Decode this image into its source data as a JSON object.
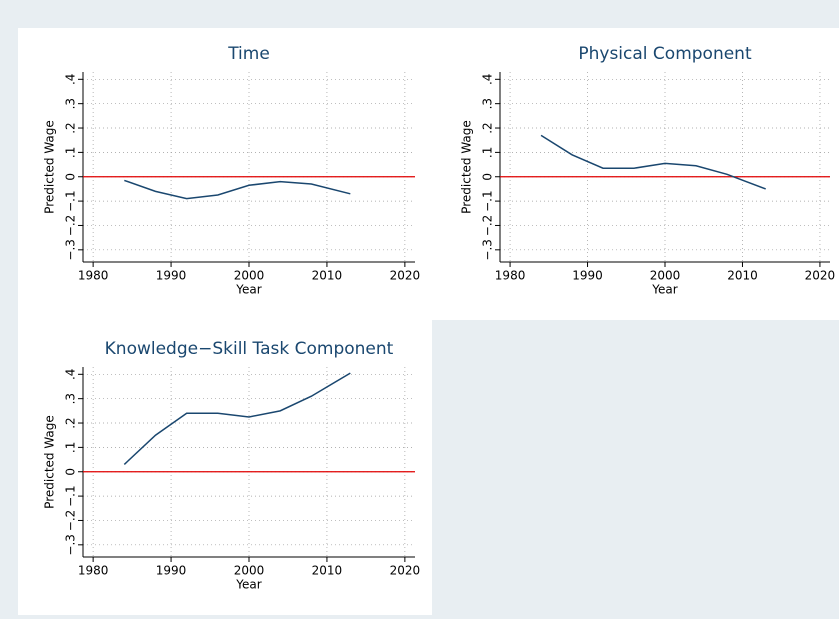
{
  "chart_data": [
    {
      "type": "line",
      "title": "Time",
      "xlabel": "Year",
      "ylabel": "Predicted Wage",
      "x": [
        1984,
        1988,
        1992,
        1996,
        2000,
        2004,
        2008,
        2013
      ],
      "series": [
        {
          "color": "#1a476f",
          "values": [
            -0.015,
            -0.06,
            -0.09,
            -0.075,
            -0.035,
            -0.02,
            -0.03,
            -0.07
          ]
        }
      ],
      "xlim": [
        1978.7,
        2021.3
      ],
      "xticks": [
        1980,
        1990,
        2000,
        2010,
        2020
      ],
      "ylim": [
        -0.35,
        0.43
      ],
      "yticks": [
        {
          "value": -0.3,
          "label": "−.3"
        },
        {
          "value": -0.2,
          "label": "−.2"
        },
        {
          "value": -0.1,
          "label": "−.1"
        },
        0,
        {
          "value": 0.1,
          "label": ".1"
        },
        {
          "value": 0.2,
          "label": ".2"
        },
        {
          "value": 0.3,
          "label": ".3"
        },
        {
          "value": 0.4,
          "label": ".4"
        }
      ],
      "grid": true,
      "hline": {
        "value": 0,
        "color": "#e00000"
      }
    },
    {
      "type": "line",
      "title": "Physical Component",
      "xlabel": "Year",
      "ylabel": "Predicted Wage",
      "x": [
        1984,
        1988,
        1992,
        1996,
        2000,
        2004,
        2008,
        2013
      ],
      "series": [
        {
          "color": "#1a476f",
          "values": [
            0.17,
            0.09,
            0.035,
            0.035,
            0.055,
            0.045,
            0.01,
            -0.05
          ]
        }
      ],
      "xlim": [
        1978.7,
        2021.3
      ],
      "xticks": [
        1980,
        1990,
        2000,
        2010,
        2020
      ],
      "ylim": [
        -0.35,
        0.43
      ],
      "yticks": [
        {
          "value": -0.3,
          "label": "−.3"
        },
        {
          "value": -0.2,
          "label": "−.2"
        },
        {
          "value": -0.1,
          "label": "−.1"
        },
        0,
        {
          "value": 0.1,
          "label": ".1"
        },
        {
          "value": 0.2,
          "label": ".2"
        },
        {
          "value": 0.3,
          "label": ".3"
        },
        {
          "value": 0.4,
          "label": ".4"
        }
      ],
      "grid": true,
      "hline": {
        "value": 0,
        "color": "#e00000"
      }
    },
    {
      "type": "line",
      "title": "Knowledge−Skill Task Component",
      "xlabel": "Year",
      "ylabel": "Predicted Wage",
      "x": [
        1984,
        1988,
        1992,
        1996,
        2000,
        2004,
        2008,
        2013
      ],
      "series": [
        {
          "color": "#1a476f",
          "values": [
            0.03,
            0.15,
            0.24,
            0.24,
            0.225,
            0.25,
            0.31,
            0.405
          ]
        }
      ],
      "xlim": [
        1978.7,
        2021.3
      ],
      "xticks": [
        1980,
        1990,
        2000,
        2010,
        2020
      ],
      "ylim": [
        -0.35,
        0.43
      ],
      "yticks": [
        {
          "value": -0.3,
          "label": "−.3"
        },
        {
          "value": -0.2,
          "label": "−.2"
        },
        {
          "value": -0.1,
          "label": "−.1"
        },
        0,
        {
          "value": 0.1,
          "label": ".1"
        },
        {
          "value": 0.2,
          "label": ".2"
        },
        {
          "value": 0.3,
          "label": ".3"
        },
        {
          "value": 0.4,
          "label": ".4"
        }
      ],
      "grid": true,
      "hline": {
        "value": 0,
        "color": "#e00000"
      }
    }
  ]
}
